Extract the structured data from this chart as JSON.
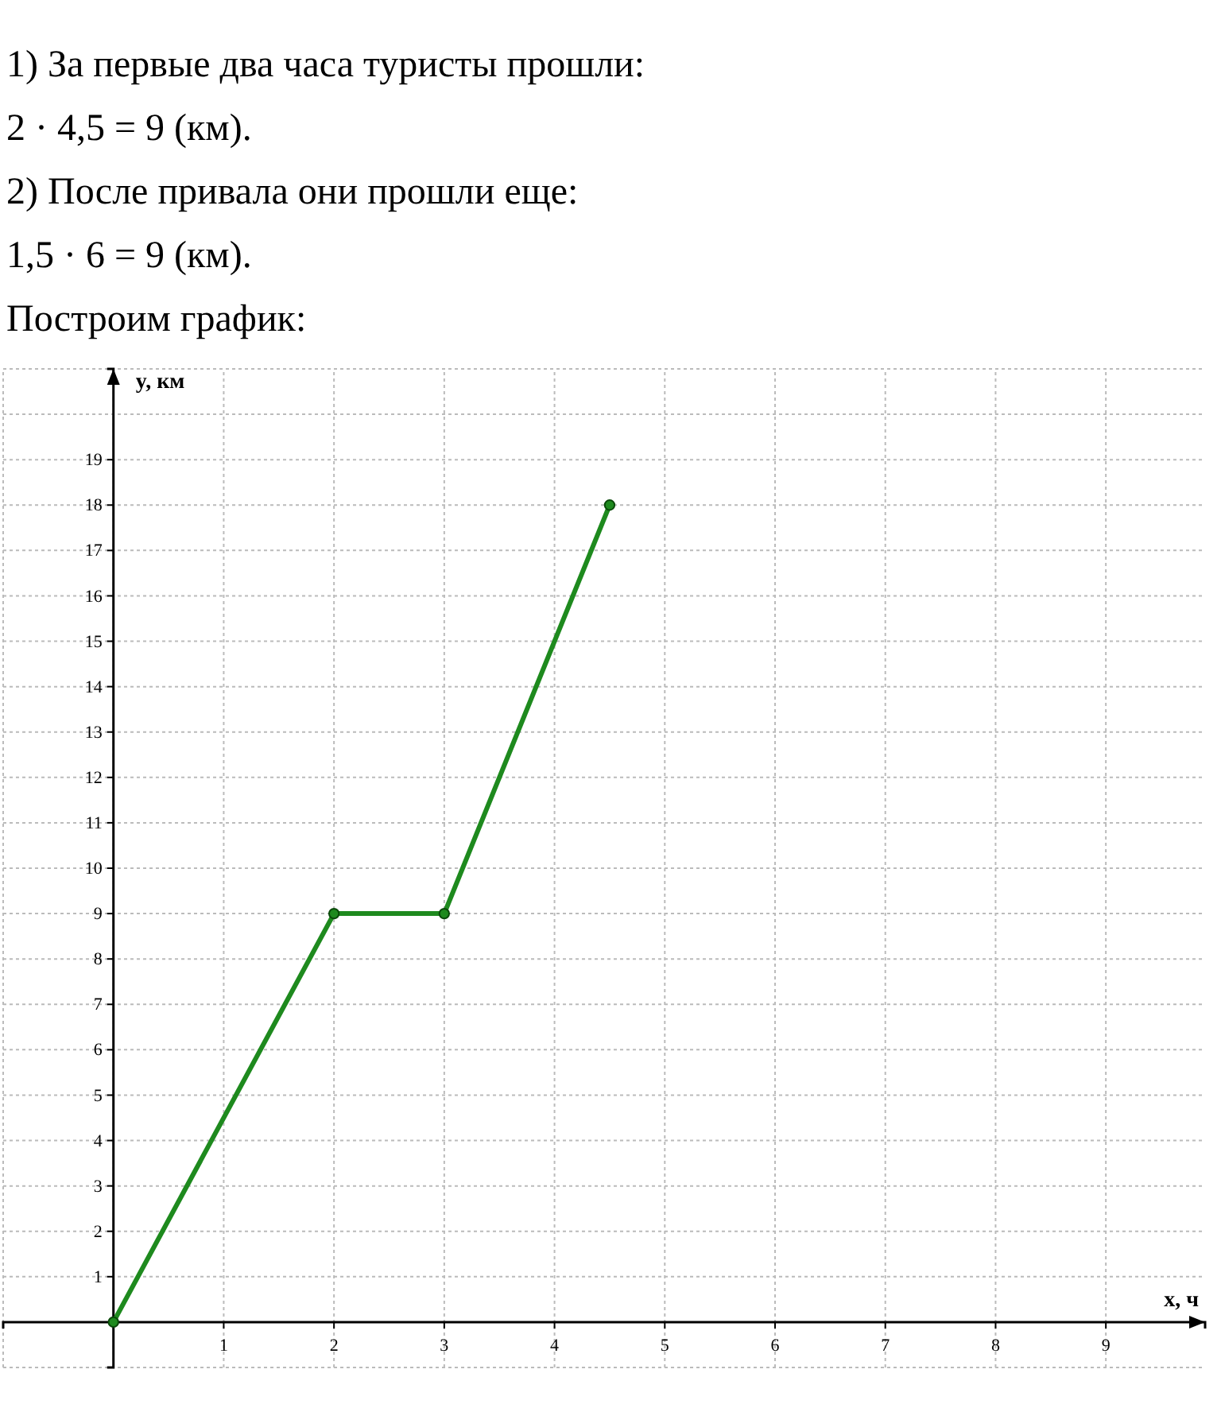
{
  "chart_data": {
    "type": "line",
    "annotations": [
      "1) За первые два часа туристы прошли:",
      "2 · 4,5 = 9 (км).",
      "2) После привала они прошли еще:",
      "1,5 · 6 = 9 (км).",
      "Построим график:"
    ],
    "xlabel": "x, ч",
    "ylabel": "y, км",
    "x": [
      0,
      2,
      3,
      4.5
    ],
    "series": [
      {
        "color": "#1e8a1e",
        "values": [
          0,
          9,
          9,
          18
        ]
      }
    ],
    "xlim": [
      -1,
      9.9
    ],
    "ylim": [
      -1,
      21
    ],
    "xticks": [
      1,
      2,
      3,
      4,
      5,
      6,
      7,
      8,
      9
    ],
    "yticks": [
      1,
      2,
      3,
      4,
      5,
      6,
      7,
      8,
      9,
      10,
      11,
      12,
      13,
      14,
      15,
      16,
      17,
      18,
      19
    ],
    "grid": true,
    "marker": "circle",
    "line_style": "solid"
  }
}
